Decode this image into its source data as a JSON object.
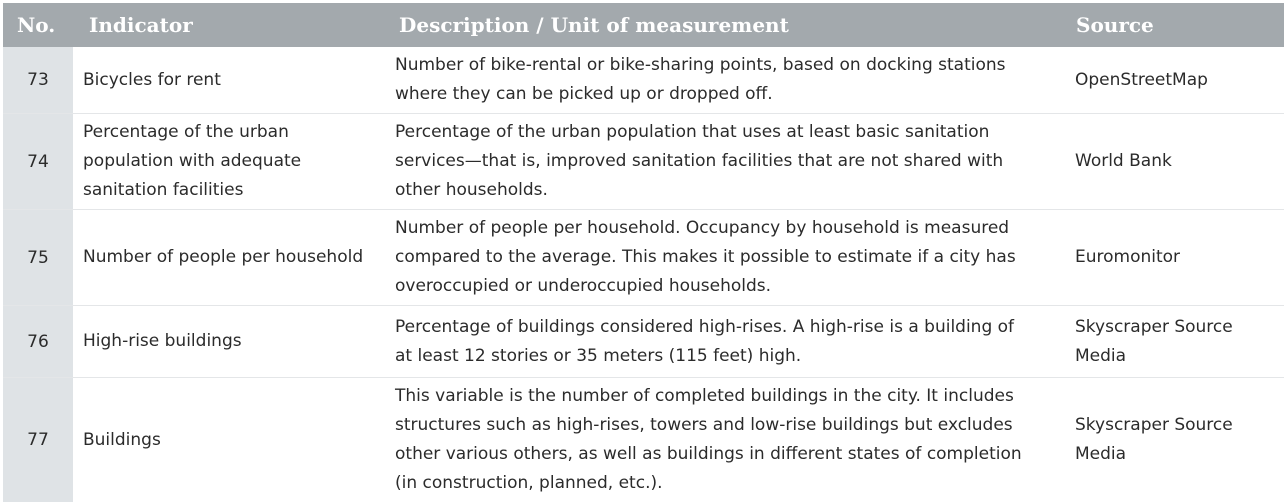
{
  "header": {
    "no": "No.",
    "indicator": "Indicator",
    "description": "Description / Unit of measurement",
    "source": "Source"
  },
  "rows": [
    {
      "no": "73",
      "indicator": "Bicycles for rent",
      "description": "Number of bike-rental or bike-sharing points, based on docking stations where they can be picked up or dropped off.",
      "source": "OpenStreetMap"
    },
    {
      "no": "74",
      "indicator": "Percentage of the urban population with adequate sanitation facilities",
      "description": "Percentage of the urban population that uses at least basic sanitation services—that is, improved sanitation facilities that are not shared with other households.",
      "source": "World Bank"
    },
    {
      "no": "75",
      "indicator": "Number of people per household",
      "description": "Number of people per household. Occupancy by household is measured compared to the average. This makes it possible to estimate if a city has overoccupied or underoccupied households.",
      "source": "Euromonitor"
    },
    {
      "no": "76",
      "indicator": "High-rise buildings",
      "description": "Percentage of buildings considered high-rises. A high-rise is a building of at least 12 stories or 35 meters (115 feet) high.",
      "source": "Skyscraper Source Media"
    },
    {
      "no": "77",
      "indicator": "Buildings",
      "description": "This variable is the number of completed buildings in the city. It includes structures such as high-rises, towers and low-rise buildings but excludes other various others, as well as buildings in different states of completion (in construction, planned, etc.).",
      "source": "Skyscraper Source Media"
    }
  ]
}
